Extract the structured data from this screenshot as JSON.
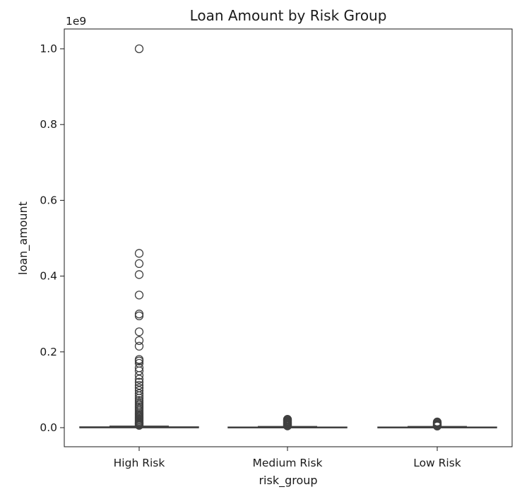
{
  "chart_data": {
    "type": "boxplot",
    "title": "Loan Amount by Risk Group",
    "xlabel": "risk_group",
    "ylabel": "loan_amount",
    "y_offset_label": "1e9",
    "y_scale": 1000000000,
    "ylim": [
      -50000000,
      1052000000
    ],
    "yticks": [
      0,
      200000000,
      400000000,
      600000000,
      800000000,
      1000000000
    ],
    "ytick_labels": [
      "0.0",
      "0.2",
      "0.4",
      "0.6",
      "0.8",
      "1.0"
    ],
    "grid": false,
    "legend": "none",
    "categories": [
      "High Risk",
      "Medium Risk",
      "Low Risk"
    ],
    "series": [
      {
        "category": "High Risk",
        "whisker_low": 0,
        "q1": 0,
        "median": 0,
        "q3": 2000000,
        "whisker_high": 4000000,
        "outliers": [
          1000000000,
          460000000,
          433000000,
          404000000,
          350000000,
          300000000,
          295000000,
          253000000,
          230000000,
          215000000,
          180000000,
          176000000,
          170000000,
          158000000,
          150000000,
          138000000,
          128000000,
          120000000,
          112000000,
          105000000,
          98000000,
          90000000,
          84000000,
          78000000,
          72000000,
          67000000,
          62000000,
          58000000,
          54000000,
          50000000,
          46000000,
          42000000,
          38000000,
          35000000,
          32000000,
          29000000,
          26000000,
          23000000,
          20000000,
          17000000,
          14000000,
          12000000,
          10000000,
          8000000,
          6000000
        ]
      },
      {
        "category": "Medium Risk",
        "whisker_low": 0,
        "q1": 0,
        "median": 0,
        "q3": 1500000,
        "whisker_high": 3000000,
        "outliers": [
          22000000,
          20000000,
          18000000,
          16000000,
          14000000,
          12000000,
          10000000,
          8000000,
          6000000,
          4500000
        ]
      },
      {
        "category": "Low Risk",
        "whisker_low": 0,
        "q1": 0,
        "median": 0,
        "q3": 1500000,
        "whisker_high": 3000000,
        "outliers": [
          15000000,
          13000000,
          11000000,
          9000000,
          7000000,
          5500000,
          4200000
        ]
      }
    ],
    "colors": {
      "box_fill": "#3a78b5",
      "box_edge": "#3f3f3f",
      "axis": "#1a1a1a"
    }
  }
}
